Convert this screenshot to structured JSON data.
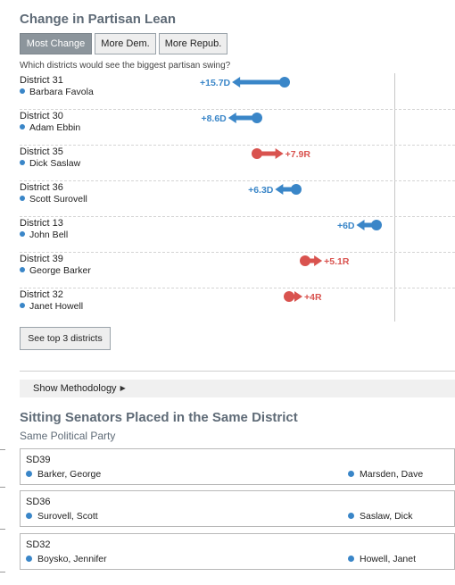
{
  "lean": {
    "title": "Change in Partisan Lean",
    "tabs": [
      "Most Change",
      "More Dem.",
      "More Repub."
    ],
    "question": "Which districts would see the biggest partisan swing?",
    "show_top_label": "See top 3 districts",
    "methodology_label": "Show Methodology",
    "colors": {
      "dem": "#3a86c8",
      "rep": "#d9534f"
    }
  },
  "chart_data": {
    "type": "table",
    "rows": [
      {
        "district": "District 31",
        "senator": "Barbara Favola",
        "label": "+15.7D",
        "party": "D",
        "change": 15.7
      },
      {
        "district": "District 30",
        "senator": "Adam Ebbin",
        "label": "+8.6D",
        "party": "D",
        "change": 8.6
      },
      {
        "district": "District 35",
        "senator": "Dick Saslaw",
        "label": "+7.9R",
        "party": "R",
        "change": 7.9
      },
      {
        "district": "District 36",
        "senator": "Scott Surovell",
        "label": "+6.3D",
        "party": "D",
        "change": 6.3
      },
      {
        "district": "District 13",
        "senator": "John Bell",
        "label": "+6D",
        "party": "D",
        "change": 6
      },
      {
        "district": "District 39",
        "senator": "George Barker",
        "label": "+5.1R",
        "party": "R",
        "change": 5.1
      },
      {
        "district": "District 32",
        "senator": "Janet Howell",
        "label": "+4R",
        "party": "R",
        "change": 4
      }
    ]
  },
  "same_district": {
    "title": "Sitting Senators Placed in the Same District",
    "subtitle": "Same Political Party",
    "cards": [
      {
        "code": "SD39",
        "a": "Barker, George",
        "b": "Marsden, Dave"
      },
      {
        "code": "SD36",
        "a": "Surovell, Scott",
        "b": "Saslaw, Dick"
      },
      {
        "code": "SD32",
        "a": "Boysko, Jennifer",
        "b": "Howell, Janet"
      }
    ]
  }
}
